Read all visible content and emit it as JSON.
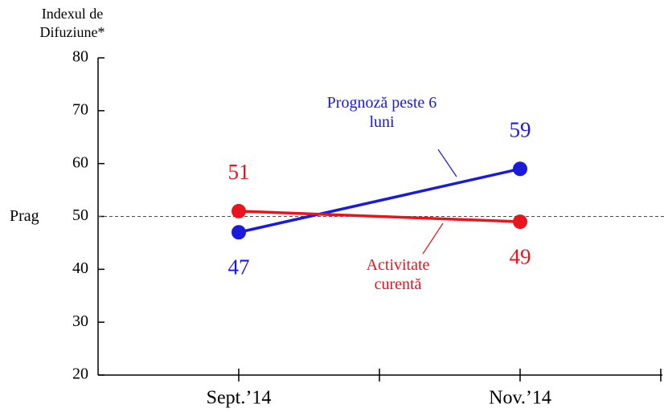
{
  "chart_data": {
    "type": "line",
    "ylabel": "Indexul de Difuziune*",
    "categories": [
      "Sept.’14",
      "Nov.’14"
    ],
    "series": [
      {
        "name": "Prognoză peste 6 luni",
        "color": "#1a1adc",
        "values": [
          47,
          59
        ]
      },
      {
        "name": "Activitate curentă",
        "color": "#e8141e",
        "values": [
          51,
          49
        ]
      }
    ],
    "ylim": [
      20,
      80
    ],
    "yticks": [
      20,
      30,
      40,
      50,
      60,
      70,
      80
    ],
    "threshold": {
      "value": 50,
      "label": "Prag"
    }
  }
}
